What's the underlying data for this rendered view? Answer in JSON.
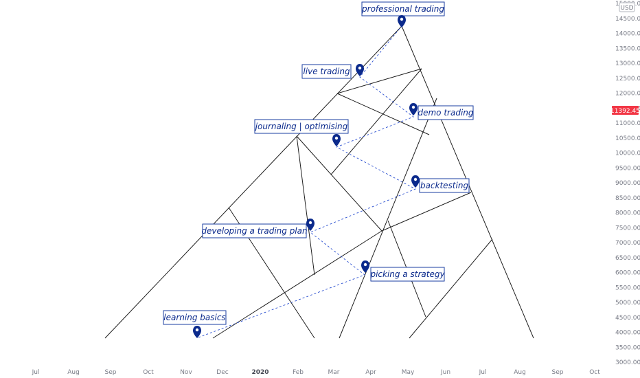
{
  "chart_data": {
    "type": "line",
    "currency": "USD",
    "current_price": "11392.45",
    "y_ticks": [
      "15000.00",
      "14500.00",
      "14000.00",
      "13500.00",
      "13000.00",
      "12500.00",
      "12000.00",
      "11500.00",
      "11000.00",
      "10500.00",
      "10000.00",
      "9500.00",
      "9000.00",
      "8500.00",
      "8000.00",
      "7500.00",
      "7000.00",
      "6500.00",
      "6000.00",
      "5500.00",
      "5000.00",
      "4500.00",
      "4000.00",
      "3500.00",
      "3000.00"
    ],
    "x_ticks": [
      {
        "label": "Jul",
        "bold": false
      },
      {
        "label": "Aug",
        "bold": false
      },
      {
        "label": "Sep",
        "bold": false
      },
      {
        "label": "Oct",
        "bold": false
      },
      {
        "label": "Nov",
        "bold": false
      },
      {
        "label": "Dec",
        "bold": false
      },
      {
        "label": "2020",
        "bold": true
      },
      {
        "label": "Feb",
        "bold": false
      },
      {
        "label": "Mar",
        "bold": false
      },
      {
        "label": "Apr",
        "bold": false
      },
      {
        "label": "May",
        "bold": false
      },
      {
        "label": "Jun",
        "bold": false
      },
      {
        "label": "Jul",
        "bold": false
      },
      {
        "label": "Aug",
        "bold": false
      },
      {
        "label": "Sep",
        "bold": false
      },
      {
        "label": "Oct",
        "bold": false
      }
    ],
    "annotations": [
      {
        "text": "learning basics"
      },
      {
        "text": "picking a strategy"
      },
      {
        "text": "developing a trading plan"
      },
      {
        "text": "backtesting"
      },
      {
        "text": "journaling | optimising"
      },
      {
        "text": "demo trading"
      },
      {
        "text": "live trading"
      },
      {
        "text": "professional trading"
      }
    ]
  }
}
